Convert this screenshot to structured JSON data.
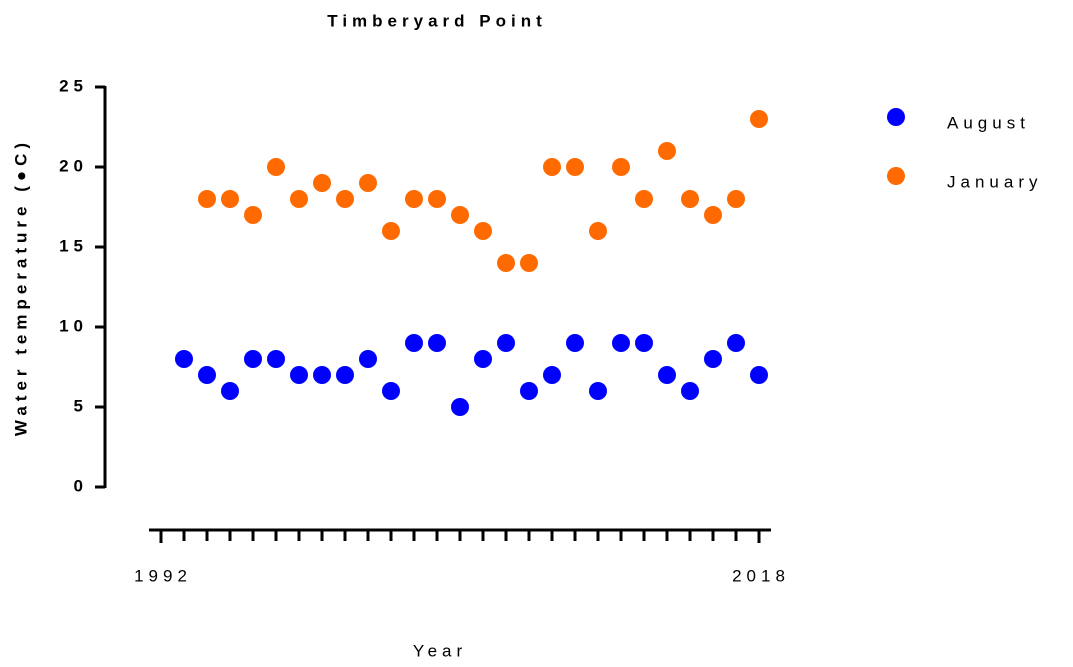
{
  "chart_data": {
    "type": "scatter",
    "title": "Timberyard Point",
    "xlabel": "Year",
    "ylabel": "Water temperature (●C)",
    "series": [
      {
        "name": "August",
        "color": "#0000ff",
        "x": [
          1993,
          1994,
          1995,
          1996,
          1997,
          1998,
          1999,
          2000,
          2001,
          2002,
          2003,
          2004,
          2005,
          2006,
          2007,
          2008,
          2009,
          2010,
          2011,
          2012,
          2013,
          2014,
          2015,
          2016,
          2017,
          2018
        ],
        "values": [
          8,
          7,
          6,
          8,
          8,
          7,
          7,
          7,
          8,
          6,
          9,
          9,
          5,
          8,
          9,
          6,
          7,
          9,
          6,
          9,
          9,
          7,
          6,
          8,
          9,
          7
        ]
      },
      {
        "name": "January",
        "color": "#ff6a00",
        "x": [
          1994,
          1995,
          1996,
          1997,
          1998,
          1999,
          2000,
          2001,
          2002,
          2003,
          2004,
          2005,
          2006,
          2007,
          2008,
          2009,
          2010,
          2011,
          2012,
          2013,
          2014,
          2015,
          2016,
          2017,
          2018
        ],
        "values": [
          18,
          18,
          17,
          20,
          18,
          19,
          18,
          19,
          16,
          18,
          18,
          17,
          16,
          14,
          14,
          20,
          20,
          16,
          20,
          18,
          21,
          18,
          17,
          18,
          23
        ]
      }
    ],
    "xlim": [
      1992,
      2018
    ],
    "xticks": [
      1992,
      2018
    ],
    "xminorticks": [
      1992,
      1993,
      1994,
      1995,
      1996,
      1997,
      1998,
      1999,
      2000,
      2001,
      2002,
      2003,
      2004,
      2005,
      2006,
      2007,
      2008,
      2009,
      2010,
      2011,
      2012,
      2013,
      2014,
      2015,
      2016,
      2017,
      2018
    ],
    "ylim": [
      0,
      25
    ],
    "yticks": [
      0,
      5,
      10,
      15,
      20,
      25
    ],
    "legend": "right"
  }
}
